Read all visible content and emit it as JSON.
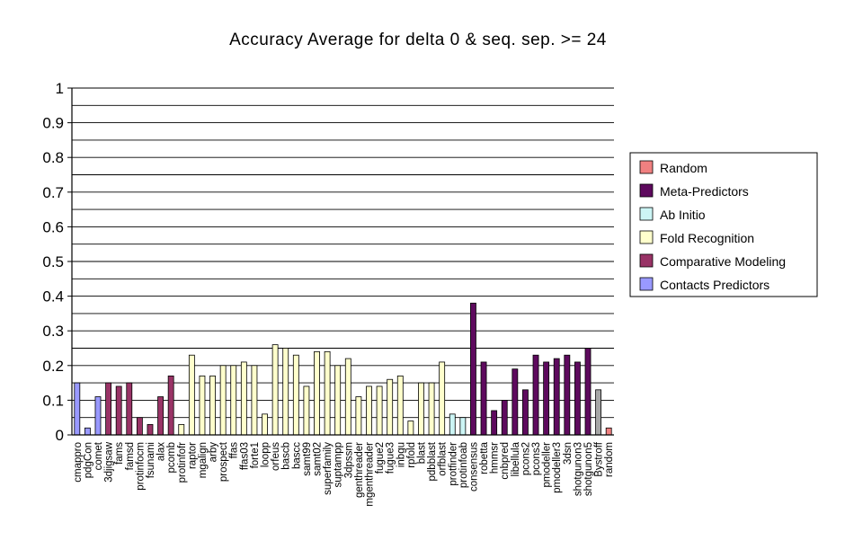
{
  "chart_data": {
    "type": "bar",
    "title": "Accuracy Average for delta 0 & seq. sep. >= 24",
    "xlabel": "",
    "ylabel": "",
    "ylim": [
      0,
      1
    ],
    "yticks": [
      "0",
      "0.1",
      "0.2",
      "0.3",
      "0.4",
      "0.5",
      "0.6",
      "0.7",
      "0.8",
      "0.9",
      "1"
    ],
    "grid": true,
    "legend_position": "right",
    "legend": [
      {
        "name": "Random",
        "color": "#f08080"
      },
      {
        "name": "Meta-Predictors",
        "color": "#5e0a5e"
      },
      {
        "name": "Ab Initio",
        "color": "#ccf5f5"
      },
      {
        "name": "Fold Recognition",
        "color": "#ffffcc"
      },
      {
        "name": "Comparative Modeling",
        "color": "#993366"
      },
      {
        "name": "Contacts Predictors",
        "color": "#9999ff"
      }
    ],
    "other_color": "#a6a6a6",
    "categories": [
      "cmappro",
      "pdgCon",
      "comet",
      "3djigsaw",
      "fams",
      "famsd",
      "protinfocm",
      "fsunami",
      "alax",
      "pcomb",
      "protinfofr",
      "raptor",
      "mgalign",
      "arby",
      "prospect",
      "ffas",
      "ffas03",
      "forte1",
      "loopp",
      "orfeus",
      "bascb",
      "bascc",
      "samt99",
      "samt02",
      "superfamily",
      "suptampp",
      "3dpssm",
      "genthreader",
      "mgenthreader",
      "fugue2",
      "fugue3",
      "inbgu",
      "rpfold",
      "blast",
      "pdbblast",
      "orfblast",
      "protfinder",
      "protinfoab",
      "consensus",
      "robetta",
      "hmmsr",
      "cnbpred",
      "libellula",
      "pcons2",
      "pcons3",
      "pmodeller",
      "pmodeller3",
      "3dsn",
      "shotgunon3",
      "shotgunon5",
      "Bystroff",
      "random"
    ],
    "values": [
      0.15,
      0.02,
      0.11,
      0.15,
      0.14,
      0.15,
      0.05,
      0.03,
      0.11,
      0.17,
      0.03,
      0.23,
      0.17,
      0.17,
      0.2,
      0.2,
      0.21,
      0.2,
      0.06,
      0.26,
      0.25,
      0.23,
      0.14,
      0.24,
      0.24,
      0.2,
      0.22,
      0.11,
      0.14,
      0.14,
      0.16,
      0.17,
      0.04,
      0.15,
      0.15,
      0.21,
      0.06,
      0.05,
      0.38,
      0.21,
      0.07,
      0.1,
      0.19,
      0.13,
      0.23,
      0.21,
      0.22,
      0.23,
      0.21,
      0.25,
      0.13,
      0.02
    ],
    "groups": [
      "Contacts Predictors",
      "Contacts Predictors",
      "Contacts Predictors",
      "Comparative Modeling",
      "Comparative Modeling",
      "Comparative Modeling",
      "Comparative Modeling",
      "Comparative Modeling",
      "Comparative Modeling",
      "Comparative Modeling",
      "Fold Recognition",
      "Fold Recognition",
      "Fold Recognition",
      "Fold Recognition",
      "Fold Recognition",
      "Fold Recognition",
      "Fold Recognition",
      "Fold Recognition",
      "Fold Recognition",
      "Fold Recognition",
      "Fold Recognition",
      "Fold Recognition",
      "Fold Recognition",
      "Fold Recognition",
      "Fold Recognition",
      "Fold Recognition",
      "Fold Recognition",
      "Fold Recognition",
      "Fold Recognition",
      "Fold Recognition",
      "Fold Recognition",
      "Fold Recognition",
      "Fold Recognition",
      "Fold Recognition",
      "Fold Recognition",
      "Fold Recognition",
      "Ab Initio",
      "Ab Initio",
      "Meta-Predictors",
      "Meta-Predictors",
      "Meta-Predictors",
      "Meta-Predictors",
      "Meta-Predictors",
      "Meta-Predictors",
      "Meta-Predictors",
      "Meta-Predictors",
      "Meta-Predictors",
      "Meta-Predictors",
      "Meta-Predictors",
      "Meta-Predictors",
      "Other",
      "Random"
    ]
  }
}
